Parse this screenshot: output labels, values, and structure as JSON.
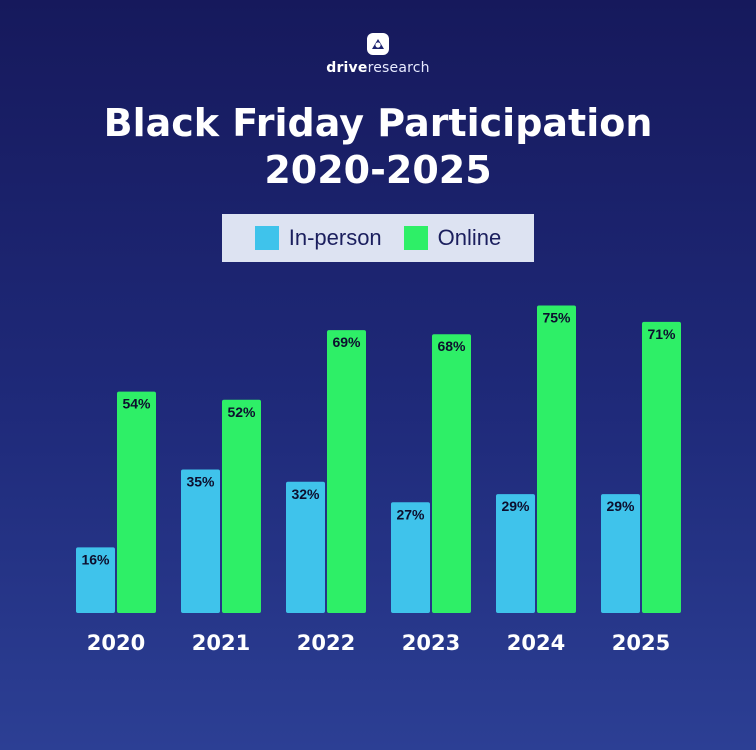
{
  "brand": {
    "bold": "drive",
    "light": "research"
  },
  "chart_data": {
    "type": "bar",
    "title_line1": "Black Friday Participation",
    "title_line2": "2020-2025",
    "categories": [
      "2020",
      "2021",
      "2022",
      "2023",
      "2024",
      "2025"
    ],
    "series": [
      {
        "name": "In-person",
        "color": "#3fc3eb",
        "values": [
          16,
          35,
          32,
          27,
          29,
          29
        ],
        "labels": [
          "16%",
          "35%",
          "32%",
          "27%",
          "29%",
          "29%"
        ]
      },
      {
        "name": "Online",
        "color": "#2eef67",
        "values": [
          54,
          52,
          69,
          68,
          75,
          71
        ],
        "labels": [
          "54%",
          "52%",
          "69%",
          "68%",
          "75%",
          "71%"
        ]
      }
    ],
    "ylim": [
      0,
      100
    ],
    "grid": false,
    "legend_position": "top-center"
  }
}
